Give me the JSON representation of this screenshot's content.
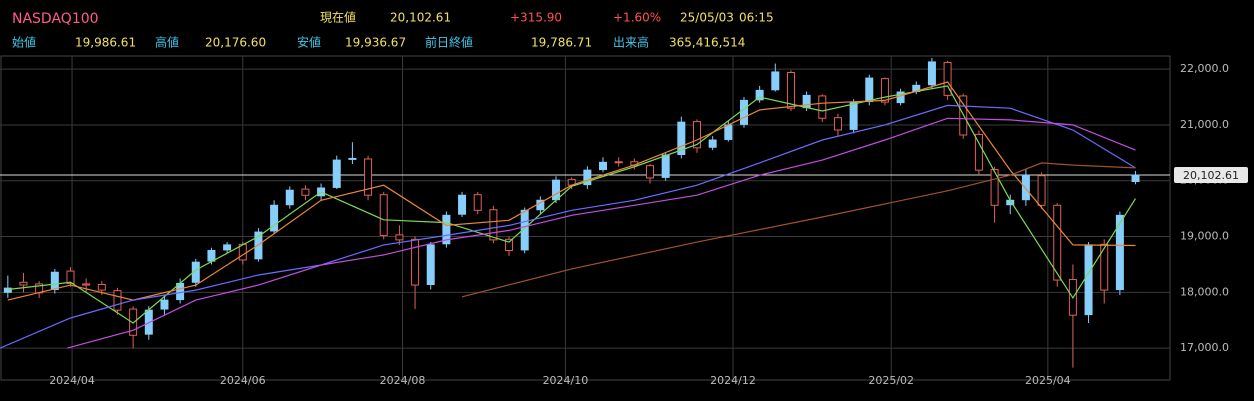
{
  "header": {
    "symbol": "NASDAQ100",
    "current_label": "現在値",
    "current": "20,102.61",
    "change": "+315.90",
    "change_pct": "+1.60%",
    "date": "25/05/03",
    "time": "06:15",
    "stats": [
      {
        "label": "始値",
        "value": "19,986.61"
      },
      {
        "label": "高値",
        "value": "20,176.60"
      },
      {
        "label": "安値",
        "value": "19,936.67"
      },
      {
        "label": "前日終値",
        "value": "19,786.71"
      },
      {
        "label": "出来高",
        "value": "365,416,514"
      }
    ]
  },
  "chart_data": {
    "type": "candlestick",
    "up_color": "#87cefa",
    "down_color": "#e0605a",
    "grid": true,
    "xlim": [
      -0.5,
      74.2
    ],
    "ylim": [
      16500,
      22200
    ],
    "xticks": [
      {
        "value": 4.1,
        "label": "2024/04"
      },
      {
        "value": 15,
        "label": "2024/06"
      },
      {
        "value": 25.2,
        "label": "2024/08"
      },
      {
        "value": 35.6,
        "label": "2024/10"
      },
      {
        "value": 46.3,
        "label": "2024/12"
      },
      {
        "value": 56.4,
        "label": "2025/02"
      },
      {
        "value": 66.4,
        "label": "2025/04"
      }
    ],
    "yticks": [
      {
        "value": 17000,
        "label": "17,000.0"
      },
      {
        "value": 18000,
        "label": "18,000.0"
      },
      {
        "value": 19000,
        "label": "19,000.0"
      },
      {
        "value": 20000,
        "label": "20,000.0"
      },
      {
        "value": 21000,
        "label": "21,000.0"
      },
      {
        "value": 22000,
        "label": "22,000.0"
      }
    ],
    "last_price": {
      "value": 20102.61,
      "label": "20,102.61"
    },
    "open": [
      18000,
      18180,
      18150,
      18050,
      18380,
      18150,
      18140,
      18030,
      17700,
      17250,
      17700,
      17870,
      18180,
      18560,
      18760,
      18860,
      18600,
      19100,
      19570,
      19850,
      19730,
      19880,
      20390,
      20390,
      19750,
      19030,
      18950,
      18140,
      18870,
      19400,
      19750,
      19480,
      18950,
      18760,
      19480,
      19660,
      20020,
      19930,
      20200,
      20340,
      20340,
      20270,
      20060,
      20470,
      21060,
      20600,
      20740,
      21010,
      21450,
      21630,
      21940,
      21310,
      21520,
      21130,
      20920,
      21420,
      21830,
      21400,
      21600,
      21720,
      22120,
      21520,
      20830,
      20200,
      19570,
      19660,
      20090,
      19560,
      18230,
      17600,
      18860,
      18050,
      19986.61
    ],
    "high": [
      18300,
      18350,
      18200,
      18420,
      18450,
      18250,
      18200,
      18080,
      17750,
      17750,
      17950,
      18250,
      18600,
      18800,
      18900,
      18900,
      19150,
      19650,
      19900,
      19920,
      19950,
      20450,
      20690,
      20450,
      19800,
      19200,
      19000,
      18900,
      19450,
      19800,
      19800,
      19550,
      19000,
      19520,
      19720,
      20080,
      20060,
      20260,
      20420,
      20420,
      20400,
      20300,
      20500,
      21150,
      21100,
      20800,
      21080,
      21500,
      21700,
      22100,
      21980,
      21600,
      21550,
      21200,
      21460,
      21900,
      21850,
      21650,
      21780,
      22200,
      22150,
      21560,
      20900,
      20250,
      19750,
      20200,
      20150,
      19600,
      18500,
      18900,
      18950,
      19450,
      20176.6
    ],
    "low": [
      17900,
      18000,
      17900,
      17980,
      18100,
      18000,
      17950,
      17600,
      17000,
      17150,
      17600,
      17800,
      18100,
      18500,
      18700,
      18500,
      18550,
      19050,
      19500,
      19650,
      19650,
      19850,
      20300,
      19650,
      18950,
      18850,
      17700,
      18050,
      18800,
      19350,
      19400,
      18880,
      18650,
      18700,
      19400,
      19600,
      19850,
      19850,
      20150,
      20250,
      20200,
      19950,
      20000,
      20400,
      20500,
      20550,
      20700,
      20950,
      21400,
      21600,
      21250,
      21250,
      21050,
      20800,
      20850,
      21350,
      21350,
      21350,
      21550,
      21650,
      21450,
      20750,
      20100,
      19250,
      19400,
      19550,
      19500,
      18100,
      16650,
      17450,
      17800,
      17950,
      19936.67
    ],
    "close": [
      18075,
      18130,
      17990,
      18360,
      18160,
      18130,
      18040,
      17680,
      17230,
      17680,
      17860,
      18160,
      18540,
      18750,
      18850,
      18580,
      19080,
      19560,
      19830,
      19740,
      19870,
      20370,
      20400,
      19740,
      19020,
      18940,
      18130,
      18850,
      19380,
      19740,
      19470,
      18940,
      18750,
      19470,
      19650,
      20010,
      19920,
      20190,
      20330,
      20330,
      20280,
      20050,
      20460,
      21050,
      20590,
      20730,
      21000,
      21440,
      21620,
      21950,
      21300,
      21530,
      21120,
      20910,
      21410,
      21840,
      21410,
      21590,
      21710,
      22130,
      21530,
      20820,
      20190,
      19560,
      19650,
      20100,
      19560,
      18220,
      17590,
      18850,
      18040,
      19380,
      20102.61
    ],
    "series": [
      {
        "color": "#7ed957",
        "x": [
          0,
          4,
          8,
          12,
          16,
          20,
          24,
          28,
          32,
          36,
          40,
          44,
          48,
          52,
          56,
          60,
          64,
          68,
          72
        ],
        "values": [
          18050,
          18180,
          17450,
          18400,
          19000,
          19800,
          19300,
          19250,
          18900,
          19900,
          20250,
          20650,
          21500,
          21250,
          21500,
          21700,
          19650,
          17900,
          19680
        ]
      },
      {
        "color": "#e8883a",
        "x": [
          0,
          4,
          8,
          12,
          16,
          20,
          24,
          28,
          32,
          36,
          40,
          44,
          48,
          52,
          56,
          60,
          64,
          68,
          72
        ],
        "values": [
          17860,
          18130,
          17860,
          18130,
          18850,
          19650,
          19920,
          19200,
          19290,
          19920,
          20280,
          20730,
          21270,
          21390,
          21440,
          21770,
          20190,
          18850,
          18840
        ]
      },
      {
        "color": "#6b6bff",
        "x": [
          -0.5,
          4,
          8,
          12,
          16,
          20,
          24,
          28,
          32,
          36,
          40,
          44,
          48,
          52,
          56,
          60,
          64,
          68,
          72
        ],
        "values": [
          17000,
          17540,
          17860,
          18040,
          18310,
          18490,
          18850,
          19020,
          19200,
          19470,
          19650,
          19920,
          20320,
          20730,
          21000,
          21350,
          21300,
          20910,
          20230
        ]
      },
      {
        "color": "#c04fe0",
        "x": [
          3.8,
          8,
          12,
          16,
          20,
          24,
          28,
          32,
          36,
          40,
          44,
          48,
          52,
          56,
          60,
          64,
          68,
          72
        ],
        "values": [
          17000,
          17320,
          17860,
          18130,
          18490,
          18670,
          18940,
          19110,
          19380,
          19560,
          19740,
          20100,
          20370,
          20730,
          21120,
          21090,
          21000,
          20550
        ]
      },
      {
        "color": "#a0522d",
        "x": [
          29,
          36,
          44,
          52,
          60,
          64,
          66,
          68,
          72
        ],
        "values": [
          17920,
          18420,
          18900,
          19350,
          19820,
          20100,
          20320,
          20280,
          20230
        ]
      }
    ]
  }
}
